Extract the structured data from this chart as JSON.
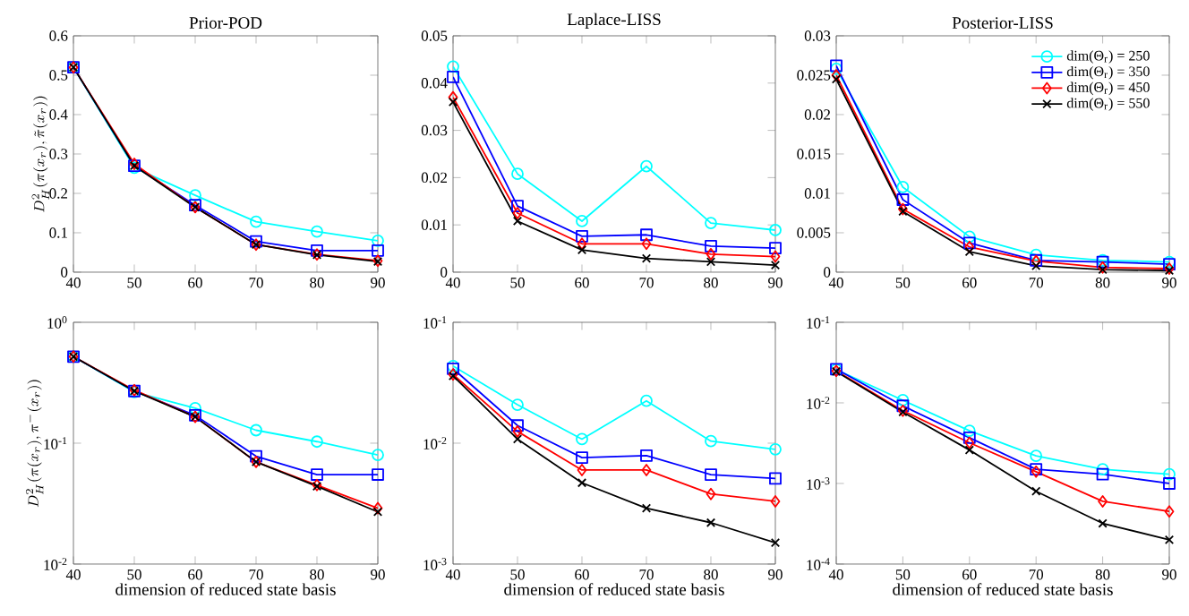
{
  "chart_data": [
    {
      "type": "line",
      "title": "Prior-POD",
      "ylabel": "D^2_H(\\pi(x_r), \\tilde{\\pi}(x_r))",
      "x": [
        40,
        50,
        60,
        70,
        80,
        90
      ],
      "xlim": [
        40,
        90
      ],
      "xticks": [
        40,
        50,
        60,
        70,
        80,
        90
      ],
      "ylim": [
        0,
        0.6
      ],
      "yticks": [
        0,
        0.1,
        0.2,
        0.3,
        0.4,
        0.5,
        0.6
      ],
      "series": [
        {
          "color": "#00ffff",
          "marker": "circle",
          "values": [
            0.52,
            0.265,
            0.195,
            0.128,
            0.103,
            0.08
          ]
        },
        {
          "color": "#0000ff",
          "marker": "square",
          "values": [
            0.52,
            0.27,
            0.17,
            0.078,
            0.055,
            0.055
          ]
        },
        {
          "color": "#ff0000",
          "marker": "diamond",
          "values": [
            0.52,
            0.275,
            0.165,
            0.07,
            0.045,
            0.029
          ]
        },
        {
          "color": "#000000",
          "marker": "cross",
          "values": [
            0.52,
            0.27,
            0.165,
            0.07,
            0.044,
            0.027
          ]
        }
      ]
    },
    {
      "type": "line",
      "title": "Laplace-LISS",
      "x": [
        40,
        50,
        60,
        70,
        80,
        90
      ],
      "xlim": [
        40,
        90
      ],
      "xticks": [
        40,
        50,
        60,
        70,
        80,
        90
      ],
      "ylim": [
        0,
        0.05
      ],
      "yticks": [
        0,
        0.01,
        0.02,
        0.03,
        0.04,
        0.05
      ],
      "series": [
        {
          "color": "#00ffff",
          "marker": "circle",
          "values": [
            0.0435,
            0.0208,
            0.0108,
            0.0224,
            0.0104,
            0.0089
          ]
        },
        {
          "color": "#0000ff",
          "marker": "square",
          "values": [
            0.0413,
            0.014,
            0.0076,
            0.0079,
            0.0055,
            0.0051
          ]
        },
        {
          "color": "#ff0000",
          "marker": "diamond",
          "values": [
            0.037,
            0.0125,
            0.006,
            0.006,
            0.0038,
            0.0033
          ]
        },
        {
          "color": "#000000",
          "marker": "cross",
          "values": [
            0.036,
            0.0108,
            0.0047,
            0.0029,
            0.0022,
            0.0015
          ]
        }
      ]
    },
    {
      "type": "line",
      "title": "Posterior-LISS",
      "x": [
        40,
        50,
        60,
        70,
        80,
        90
      ],
      "xlim": [
        40,
        90
      ],
      "xticks": [
        40,
        50,
        60,
        70,
        80,
        90
      ],
      "ylim": [
        0,
        0.03
      ],
      "yticks": [
        0,
        0.005,
        0.01,
        0.015,
        0.02,
        0.025,
        0.03
      ],
      "legend": "top right",
      "series": [
        {
          "name": "dim(Θ$_{r}$) = 250",
          "color": "#00ffff",
          "marker": "circle",
          "values": [
            0.0258,
            0.0108,
            0.0045,
            0.0022,
            0.0015,
            0.0013
          ]
        },
        {
          "name": "dim(Θ$_{r}$) = 350",
          "color": "#0000ff",
          "marker": "square",
          "values": [
            0.0262,
            0.0092,
            0.0037,
            0.0015,
            0.0013,
            0.001
          ]
        },
        {
          "name": "dim(Θ$_{r}$) = 450",
          "color": "#ff0000",
          "marker": "diamond",
          "values": [
            0.025,
            0.008,
            0.0032,
            0.0014,
            0.0006,
            0.00045
          ]
        },
        {
          "name": "dim(Θ$_{r}$) = 550",
          "color": "#000000",
          "marker": "cross",
          "values": [
            0.0245,
            0.0077,
            0.0026,
            0.0008,
            0.00032,
            0.0002
          ]
        }
      ]
    },
    {
      "type": "line",
      "xlabel": "dimension of reduced state basis",
      "ylabel": "D^2_H(\\pi(x_r), \\pi^{-}(x_r))",
      "log": "y",
      "x": [
        40,
        50,
        60,
        70,
        80,
        90
      ],
      "xlim": [
        40,
        90
      ],
      "xticks": [
        40,
        50,
        60,
        70,
        80,
        90
      ],
      "ylim": [
        0.01,
        1
      ],
      "yticks": [
        {
          "value": 0.01,
          "label": "10$^{-2}$"
        },
        {
          "value": 0.1,
          "label": "10$^{-1}$"
        },
        {
          "value": 1,
          "label": "10$^{0}$"
        }
      ],
      "series": [
        {
          "color": "#00ffff",
          "marker": "circle",
          "values": [
            0.52,
            0.265,
            0.195,
            0.128,
            0.103,
            0.08
          ]
        },
        {
          "color": "#0000ff",
          "marker": "square",
          "values": [
            0.52,
            0.27,
            0.17,
            0.078,
            0.055,
            0.055
          ]
        },
        {
          "color": "#ff0000",
          "marker": "diamond",
          "values": [
            0.52,
            0.275,
            0.165,
            0.07,
            0.045,
            0.029
          ]
        },
        {
          "color": "#000000",
          "marker": "cross",
          "values": [
            0.52,
            0.27,
            0.165,
            0.07,
            0.044,
            0.027
          ]
        }
      ]
    },
    {
      "type": "line",
      "xlabel": "dimension of reduced state basis",
      "log": "y",
      "x": [
        40,
        50,
        60,
        70,
        80,
        90
      ],
      "xlim": [
        40,
        90
      ],
      "xticks": [
        40,
        50,
        60,
        70,
        80,
        90
      ],
      "ylim": [
        0.001,
        0.1
      ],
      "yticks": [
        {
          "value": 0.001,
          "label": "10$^{-3}$"
        },
        {
          "value": 0.01,
          "label": "10$^{-2}$"
        },
        {
          "value": 0.1,
          "label": "10$^{-1}$"
        }
      ],
      "series": [
        {
          "color": "#00ffff",
          "marker": "circle",
          "values": [
            0.0435,
            0.0208,
            0.0108,
            0.0224,
            0.0104,
            0.0089
          ]
        },
        {
          "color": "#0000ff",
          "marker": "square",
          "values": [
            0.0413,
            0.014,
            0.0076,
            0.0079,
            0.0055,
            0.0051
          ]
        },
        {
          "color": "#ff0000",
          "marker": "diamond",
          "values": [
            0.037,
            0.0125,
            0.006,
            0.006,
            0.0038,
            0.0033
          ]
        },
        {
          "color": "#000000",
          "marker": "cross",
          "values": [
            0.036,
            0.0108,
            0.0047,
            0.0029,
            0.0022,
            0.0015
          ]
        }
      ]
    },
    {
      "type": "line",
      "xlabel": "dimension of reduced state basis",
      "log": "y",
      "x": [
        40,
        50,
        60,
        70,
        80,
        90
      ],
      "xlim": [
        40,
        90
      ],
      "xticks": [
        40,
        50,
        60,
        70,
        80,
        90
      ],
      "ylim": [
        0.0001,
        0.1
      ],
      "yticks": [
        {
          "value": 0.0001,
          "label": "10$^{-4}$"
        },
        {
          "value": 0.001,
          "label": "10$^{-3}$"
        },
        {
          "value": 0.01,
          "label": "10$^{-2}$"
        },
        {
          "value": 0.1,
          "label": "10$^{-1}$"
        }
      ],
      "series": [
        {
          "color": "#00ffff",
          "marker": "circle",
          "values": [
            0.0258,
            0.0108,
            0.0045,
            0.0022,
            0.0015,
            0.0013
          ]
        },
        {
          "color": "#0000ff",
          "marker": "square",
          "values": [
            0.0262,
            0.0092,
            0.0037,
            0.0015,
            0.0013,
            0.001
          ]
        },
        {
          "color": "#ff0000",
          "marker": "diamond",
          "values": [
            0.025,
            0.008,
            0.0032,
            0.0014,
            0.0006,
            0.00045
          ]
        },
        {
          "color": "#000000",
          "marker": "cross",
          "values": [
            0.0245,
            0.0077,
            0.0026,
            0.0008,
            0.00032,
            0.0002
          ]
        }
      ]
    }
  ]
}
